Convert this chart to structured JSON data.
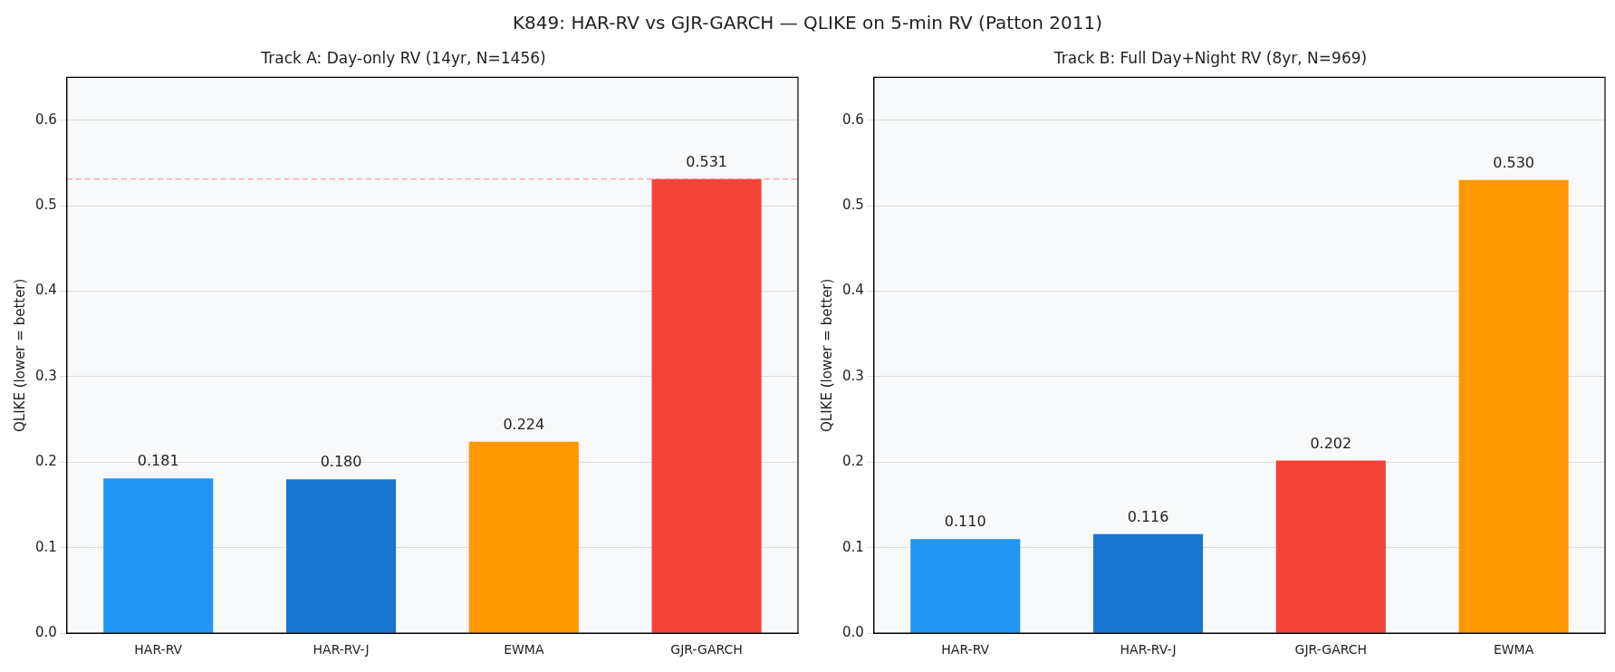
{
  "chart_data": [
    {
      "type": "bar",
      "title": "Track A: Day-only RV (14yr, N=1456)",
      "ylabel": "QLIKE (lower = better)",
      "annotations": [
        "K849: HAR-RV vs GJR-GARCH — QLIKE on 5-min RV (Patton 2011)"
      ],
      "categories": [
        "HAR-RV",
        "HAR-RV-J",
        "EWMA",
        "GJR-GARCH"
      ],
      "values": [
        0.181,
        0.18,
        0.224,
        0.531
      ],
      "value_labels": [
        "0.181",
        "0.180",
        "0.224",
        "0.531"
      ],
      "colors": [
        "#2196f3",
        "#1976d2",
        "#ff9800",
        "#f44336"
      ],
      "ylim": [
        0,
        0.65
      ],
      "yticks": [
        {
          "value": 0,
          "label": "0.0"
        },
        {
          "value": 0.1,
          "label": "0.1"
        },
        {
          "value": 0.2,
          "label": "0.2"
        },
        {
          "value": 0.3,
          "label": "0.3"
        },
        {
          "value": 0.4,
          "label": "0.4"
        },
        {
          "value": 0.5,
          "label": "0.5"
        },
        {
          "value": 0.6,
          "label": "0.6"
        }
      ],
      "grid": "y",
      "ref_lines": [
        {
          "axis": "y",
          "value": 0.531,
          "color": "#ff8080",
          "line_style": "dashed"
        }
      ]
    },
    {
      "type": "bar",
      "title": "Track B: Full Day+Night RV (8yr, N=969)",
      "ylabel": "QLIKE (lower = better)",
      "categories": [
        "HAR-RV",
        "HAR-RV-J",
        "GJR-GARCH",
        "EWMA"
      ],
      "values": [
        0.11,
        0.116,
        0.202,
        0.53
      ],
      "value_labels": [
        "0.110",
        "0.116",
        "0.202",
        "0.530"
      ],
      "colors": [
        "#2196f3",
        "#1976d2",
        "#f44336",
        "#ff9800"
      ],
      "ylim": [
        0,
        0.65
      ],
      "yticks": [
        {
          "value": 0,
          "label": "0.0"
        },
        {
          "value": 0.1,
          "label": "0.1"
        },
        {
          "value": 0.2,
          "label": "0.2"
        },
        {
          "value": 0.3,
          "label": "0.3"
        },
        {
          "value": 0.4,
          "label": "0.4"
        },
        {
          "value": 0.5,
          "label": "0.5"
        },
        {
          "value": 0.6,
          "label": "0.6"
        }
      ],
      "grid": "y"
    }
  ]
}
